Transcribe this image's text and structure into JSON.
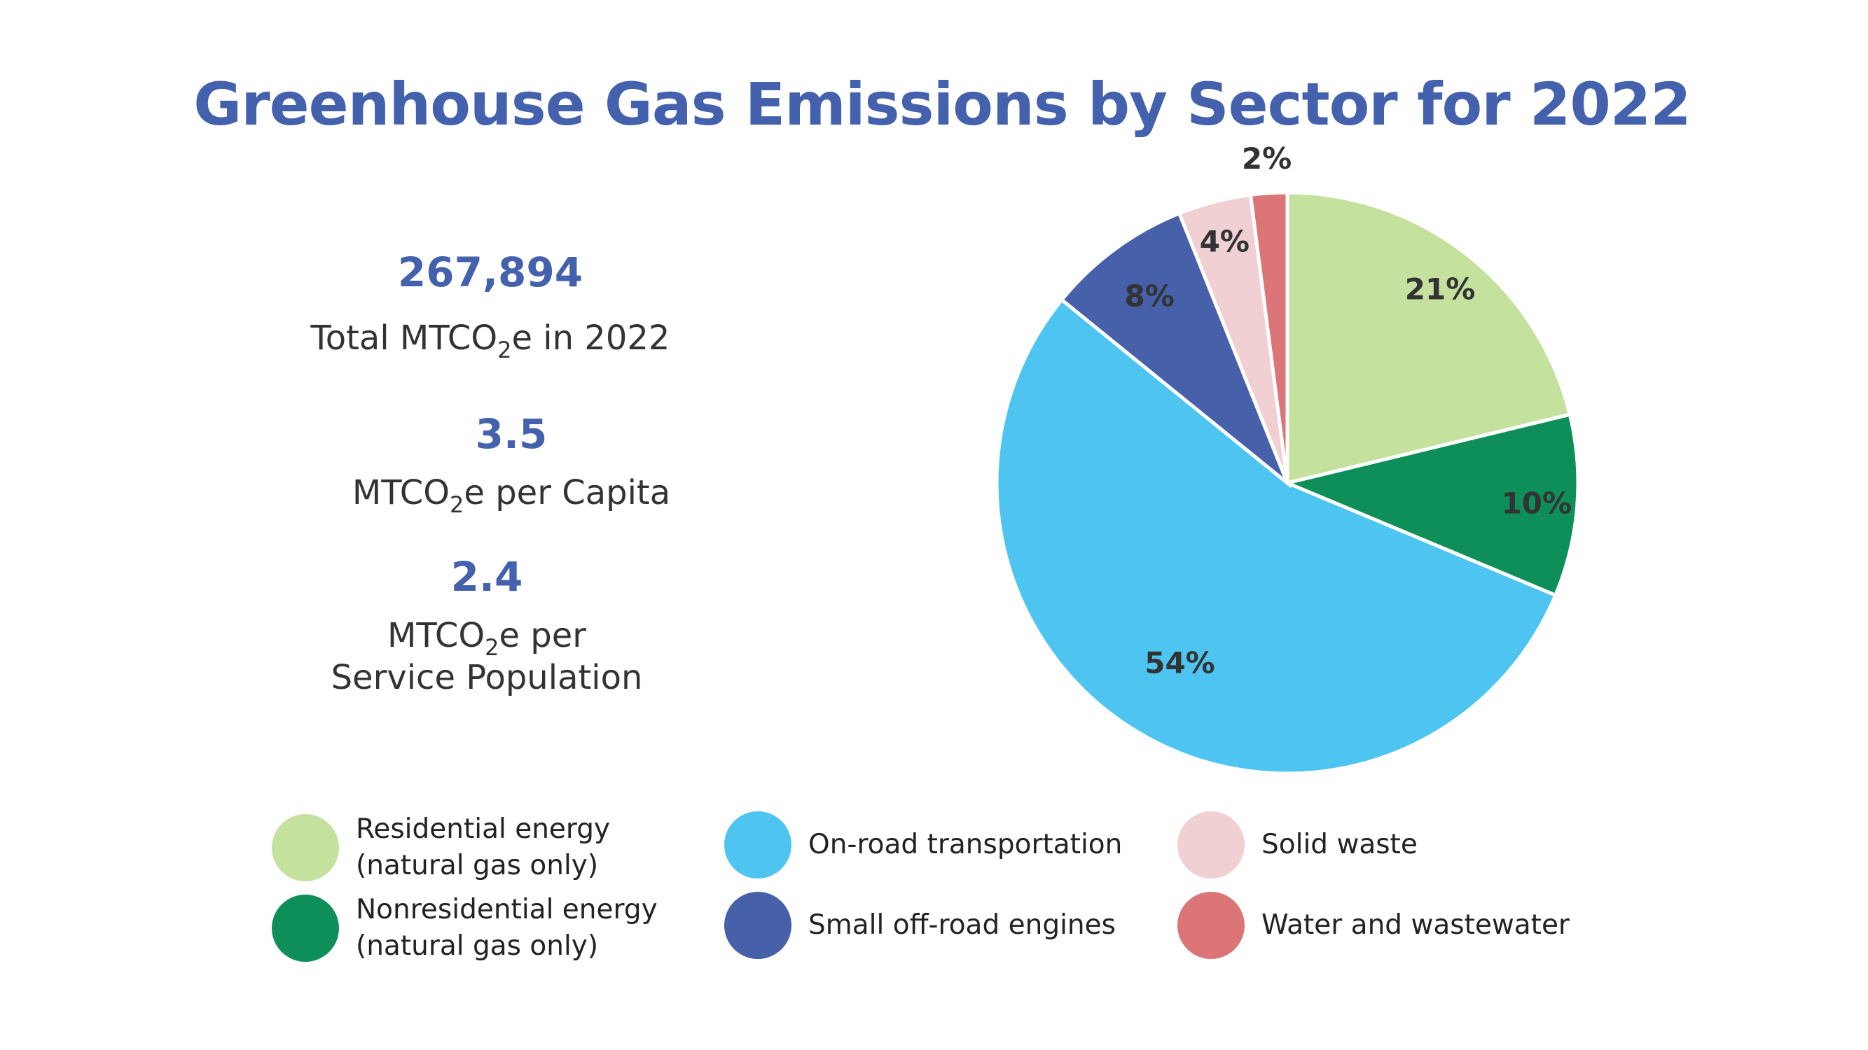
{
  "title": "Greenhouse Gas Emissions by Sector for 2022",
  "stats": [
    {
      "value": "267,894",
      "desc": [
        {
          "pre": "Total MTCO",
          "sub": "2",
          "post": "e in 2022"
        }
      ]
    },
    {
      "value": "3.5",
      "desc": [
        {
          "pre": "MTCO",
          "sub": "2",
          "post": "e per Capita"
        }
      ]
    },
    {
      "value": "2.4",
      "desc": [
        {
          "pre": "MTCO",
          "sub": "2",
          "post": "e per"
        },
        {
          "pre": "Service Population",
          "sub": "",
          "post": ""
        }
      ]
    }
  ],
  "chart_data": {
    "type": "pie",
    "title": "Greenhouse Gas Emissions by Sector for 2022",
    "start": "top, clockwise",
    "legend_placement": "bottom",
    "slices": [
      {
        "name": "Residential energy (natural gas only)",
        "value": 21,
        "label": "21%",
        "color": "#c4e29e"
      },
      {
        "name": "Nonresidential energy (natural gas only)",
        "value": 10,
        "label": "10%",
        "color": "#0e8f5a"
      },
      {
        "name": "On-road transportation",
        "value": 54,
        "label": "54%",
        "color": "#4dc5f0"
      },
      {
        "name": "Small off-road engines",
        "value": 8,
        "label": "8%",
        "color": "#4660aa"
      },
      {
        "name": "Solid waste",
        "value": 4,
        "label": "4%",
        "color": "#f0d0d3"
      },
      {
        "name": "Water and wastewater",
        "value": 2,
        "label": "2%",
        "color": "#dc7577"
      }
    ]
  },
  "legend": [
    {
      "lines": [
        "Residential energy",
        "(natural gas only)"
      ],
      "color": "#c4e29e"
    },
    {
      "lines": [
        "Nonresidential energy",
        "(natural gas only)"
      ],
      "color": "#0e8f5a"
    },
    {
      "lines": [
        "On-road transportation"
      ],
      "color": "#4dc5f0"
    },
    {
      "lines": [
        "Small off-road engines"
      ],
      "color": "#4660aa"
    },
    {
      "lines": [
        "Solid waste"
      ],
      "color": "#f0d0d3"
    },
    {
      "lines": [
        "Water and wastewater"
      ],
      "color": "#dc7577"
    }
  ]
}
